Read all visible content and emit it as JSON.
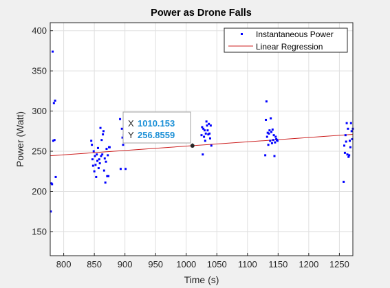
{
  "chart_data": {
    "type": "scatter",
    "title": "Power as Drone Falls",
    "xlabel": "Time (s)",
    "ylabel": "Power (Watt)",
    "xlim": [
      778,
      1272
    ],
    "ylim": [
      120,
      410
    ],
    "xticks": [
      "800",
      "850",
      "900",
      "950",
      "1000",
      "1050",
      "1100",
      "1150",
      "1200",
      "1250"
    ],
    "yticks": [
      "150",
      "200",
      "250",
      "300",
      "350",
      "400"
    ],
    "grid": true,
    "legend_location": "top-right",
    "colors": {
      "points": "#0000ff",
      "regression": "#cc1f1f",
      "datatip_value": "#1a8fd6"
    },
    "series": [
      {
        "name": "Instantaneous Power",
        "type": "scatter",
        "points": [
          [
            779,
            175
          ],
          [
            780,
            210
          ],
          [
            781,
            209
          ],
          [
            782,
            374
          ],
          [
            783,
            263
          ],
          [
            784,
            310
          ],
          [
            785,
            264
          ],
          [
            786,
            313
          ],
          [
            787,
            218
          ],
          [
            845,
            263
          ],
          [
            846,
            258
          ],
          [
            847,
            240
          ],
          [
            848,
            232
          ],
          [
            849,
            250
          ],
          [
            850,
            225
          ],
          [
            851,
            244
          ],
          [
            852,
            233
          ],
          [
            853,
            218
          ],
          [
            854,
            246
          ],
          [
            855,
            238
          ],
          [
            856,
            254
          ],
          [
            857,
            229
          ],
          [
            858,
            240
          ],
          [
            859,
            235
          ],
          [
            860,
            279
          ],
          [
            861,
            244
          ],
          [
            862,
            264
          ],
          [
            863,
            246
          ],
          [
            864,
            271
          ],
          [
            865,
            275
          ],
          [
            866,
            226
          ],
          [
            867,
            241
          ],
          [
            868,
            211
          ],
          [
            869,
            237
          ],
          [
            870,
            253
          ],
          [
            871,
            219
          ],
          [
            872,
            245
          ],
          [
            873,
            219
          ],
          [
            874,
            255
          ],
          [
            875,
            255
          ],
          [
            892,
            290
          ],
          [
            893,
            228
          ],
          [
            895,
            278
          ],
          [
            896,
            267
          ],
          [
            897,
            258
          ],
          [
            898,
            270
          ],
          [
            899,
            272
          ],
          [
            901,
            228
          ],
          [
            1025,
            270
          ],
          [
            1026,
            280
          ],
          [
            1027,
            246
          ],
          [
            1028,
            278
          ],
          [
            1029,
            268
          ],
          [
            1030,
            276
          ],
          [
            1031,
            263
          ],
          [
            1032,
            272
          ],
          [
            1033,
            287
          ],
          [
            1034,
            282
          ],
          [
            1035,
            276
          ],
          [
            1036,
            271
          ],
          [
            1037,
            284
          ],
          [
            1038,
            272
          ],
          [
            1039,
            266
          ],
          [
            1040,
            282
          ],
          [
            1041,
            257
          ],
          [
            1129,
            245
          ],
          [
            1130,
            289
          ],
          [
            1131,
            312
          ],
          [
            1132,
            268
          ],
          [
            1133,
            273
          ],
          [
            1134,
            258
          ],
          [
            1135,
            272
          ],
          [
            1136,
            276
          ],
          [
            1137,
            263
          ],
          [
            1138,
            291
          ],
          [
            1139,
            274
          ],
          [
            1140,
            260
          ],
          [
            1141,
            277
          ],
          [
            1142,
            264
          ],
          [
            1143,
            270
          ],
          [
            1144,
            244
          ],
          [
            1145,
            261
          ],
          [
            1146,
            268
          ],
          [
            1147,
            265
          ],
          [
            1148,
            264
          ],
          [
            1149,
            263
          ],
          [
            1257,
            212
          ],
          [
            1258,
            257
          ],
          [
            1259,
            248
          ],
          [
            1260,
            270
          ],
          [
            1261,
            262
          ],
          [
            1262,
            285
          ],
          [
            1263,
            246
          ],
          [
            1264,
            278
          ],
          [
            1265,
            243
          ],
          [
            1266,
            245
          ],
          [
            1267,
            263
          ],
          [
            1268,
            255
          ],
          [
            1269,
            285
          ],
          [
            1270,
            275
          ],
          [
            1271,
            265
          ],
          [
            1272,
            278
          ]
        ]
      },
      {
        "name": "Linear Regression",
        "type": "line",
        "x": [
          778,
          1272
        ],
        "y": [
          244.4,
          271.0
        ]
      }
    ],
    "datatip": {
      "x_key": "X",
      "x": "1010.153",
      "y_key": "Y",
      "y": "256.8559",
      "point": [
        1010.153,
        256.8559
      ]
    }
  }
}
